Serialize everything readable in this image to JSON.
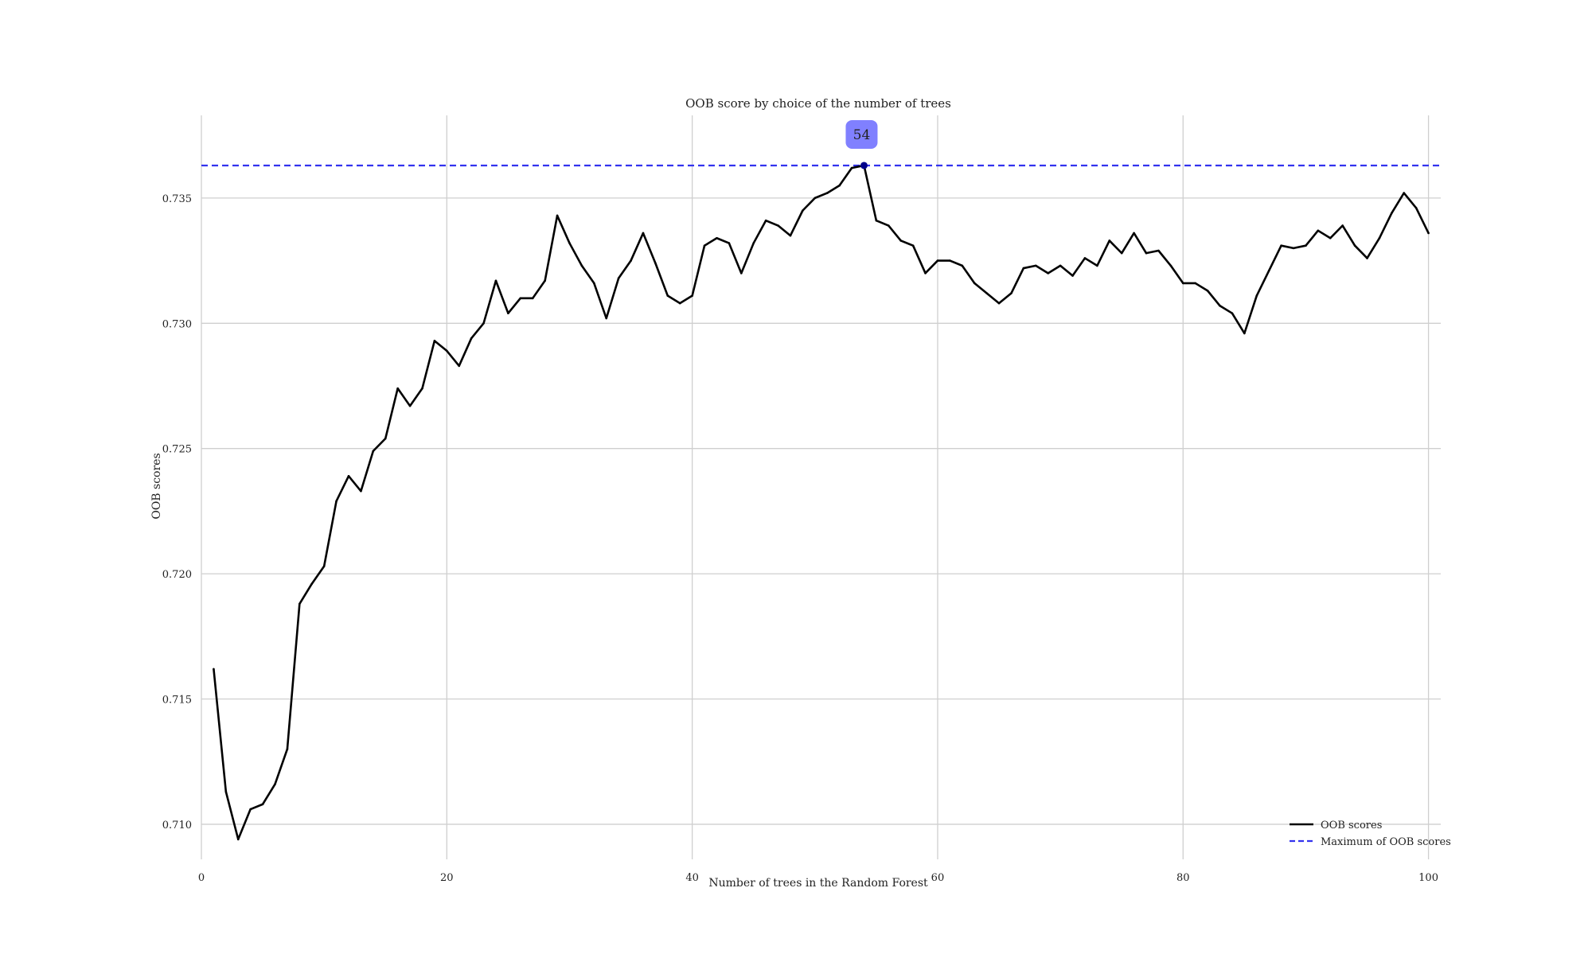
{
  "chart_data": {
    "type": "line",
    "title": "OOB score by choice of the number of trees",
    "xlabel": "Number of trees in the Random Forest",
    "ylabel": "OOB scores",
    "xlim": [
      0,
      101
    ],
    "ylim": [
      0.7086,
      0.7383
    ],
    "x_ticks": [
      0,
      20,
      40,
      60,
      80,
      100
    ],
    "y_ticks": [
      0.71,
      0.715,
      0.72,
      0.725,
      0.73,
      0.735
    ],
    "x_tick_labels": [
      "0",
      "20",
      "40",
      "60",
      "80",
      "100"
    ],
    "y_tick_labels": [
      "0.710",
      "0.715",
      "0.720",
      "0.725",
      "0.730",
      "0.735"
    ],
    "grid": true,
    "legend_position": "bottom-right",
    "series": [
      {
        "name": "OOB scores",
        "color": "#000000",
        "style": "solid",
        "x": [
          1,
          2,
          3,
          4,
          5,
          6,
          7,
          8,
          9,
          10,
          11,
          12,
          13,
          14,
          15,
          16,
          17,
          18,
          19,
          20,
          21,
          22,
          23,
          24,
          25,
          26,
          27,
          28,
          29,
          30,
          31,
          32,
          33,
          34,
          35,
          36,
          37,
          38,
          39,
          40,
          41,
          42,
          43,
          44,
          45,
          46,
          47,
          48,
          49,
          50,
          51,
          52,
          53,
          54,
          55,
          56,
          57,
          58,
          59,
          60,
          61,
          62,
          63,
          64,
          65,
          66,
          67,
          68,
          69,
          70,
          71,
          72,
          73,
          74,
          75,
          76,
          77,
          78,
          79,
          80,
          81,
          82,
          83,
          84,
          85,
          86,
          87,
          88,
          89,
          90,
          91,
          92,
          93,
          94,
          95,
          96,
          97,
          98,
          99,
          100
        ],
        "values": [
          0.7162,
          0.7113,
          0.7094,
          0.7106,
          0.7108,
          0.7116,
          0.713,
          0.7188,
          0.7196,
          0.7203,
          0.7229,
          0.7239,
          0.7233,
          0.7249,
          0.7254,
          0.7274,
          0.7267,
          0.7274,
          0.7293,
          0.7289,
          0.7283,
          0.7294,
          0.73,
          0.7317,
          0.7304,
          0.731,
          0.731,
          0.7317,
          0.7343,
          0.7332,
          0.7323,
          0.7316,
          0.7302,
          0.7318,
          0.7325,
          0.7336,
          0.7324,
          0.7311,
          0.7308,
          0.7311,
          0.7331,
          0.7334,
          0.7332,
          0.732,
          0.7332,
          0.7341,
          0.7339,
          0.7335,
          0.7345,
          0.735,
          0.7352,
          0.7355,
          0.7362,
          0.7363,
          0.7341,
          0.7339,
          0.7333,
          0.7331,
          0.732,
          0.7325,
          0.7325,
          0.7323,
          0.7316,
          0.7312,
          0.7308,
          0.7312,
          0.7322,
          0.7323,
          0.732,
          0.7323,
          0.7319,
          0.7326,
          0.7323,
          0.7333,
          0.7328,
          0.7336,
          0.7328,
          0.7329,
          0.7323,
          0.7316,
          0.7316,
          0.7313,
          0.7307,
          0.7304,
          0.7296,
          0.7311,
          0.7321,
          0.7331,
          0.733,
          0.7331,
          0.7337,
          0.7334,
          0.7339,
          0.7331,
          0.7326,
          0.7334,
          0.7344,
          0.7352,
          0.7346,
          0.7336
        ]
      },
      {
        "name": "Maximum of OOB scores",
        "color": "#3333ee",
        "style": "dashed",
        "y": 0.7363
      }
    ],
    "max_point": {
      "x": 54,
      "y": 0.7363,
      "label": "54",
      "marker_color": "#00008b",
      "badge_color": "#8080ff"
    }
  }
}
